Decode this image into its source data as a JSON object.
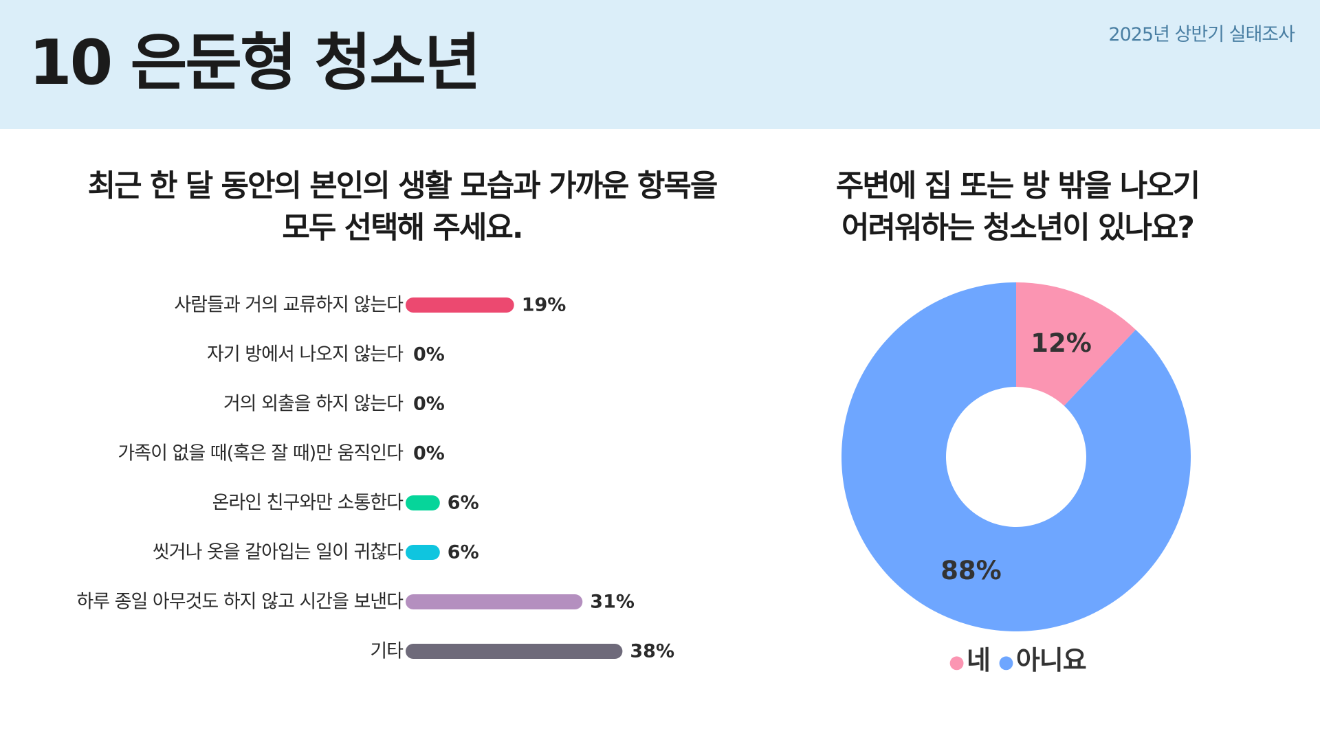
{
  "header": {
    "title": "10 은둔형 청소년",
    "survey_label": "2025년 상반기 실태조사"
  },
  "chart_data": [
    {
      "type": "bar",
      "orientation": "horizontal",
      "title": "최근 한 달 동안의 본인의 생활 모습과 가까운 항목을\n모두 선택해 주세요.",
      "categories": [
        "사람들과 거의 교류하지 않는다",
        "자기 방에서 나오지 않는다",
        "거의 외출을 하지 않는다",
        "가족이 없을 때(혹은 잘 때)만 움직인다",
        "온라인 친구와만 소통한다",
        "씻거나 옷을 갈아입는 일이 귀찮다",
        "하루 종일 아무것도 하지 않고 시간을 보낸다",
        "기타"
      ],
      "values": [
        19,
        0,
        0,
        0,
        6,
        6,
        31,
        38
      ],
      "value_labels": [
        "19%",
        "0%",
        "0%",
        "0%",
        "6%",
        "6%",
        "31%",
        "38%"
      ],
      "colors": [
        "#ec4970",
        "#ec4970",
        "#ec4970",
        "#ec4970",
        "#06d59a",
        "#0fc5df",
        "#b48fbf",
        "#6e6a7a"
      ],
      "unit": "%",
      "grid": false
    },
    {
      "type": "pie",
      "donut": true,
      "title": "주변에 집 또는 방 밖을 나오기\n어려워하는 청소년이 있나요?",
      "labels": [
        "네",
        "아니요"
      ],
      "values": [
        12,
        88
      ],
      "value_labels": [
        "12%",
        "88%"
      ],
      "colors": [
        "#fb95b2",
        "#6ea6ff"
      ],
      "legend": "bottom"
    }
  ]
}
